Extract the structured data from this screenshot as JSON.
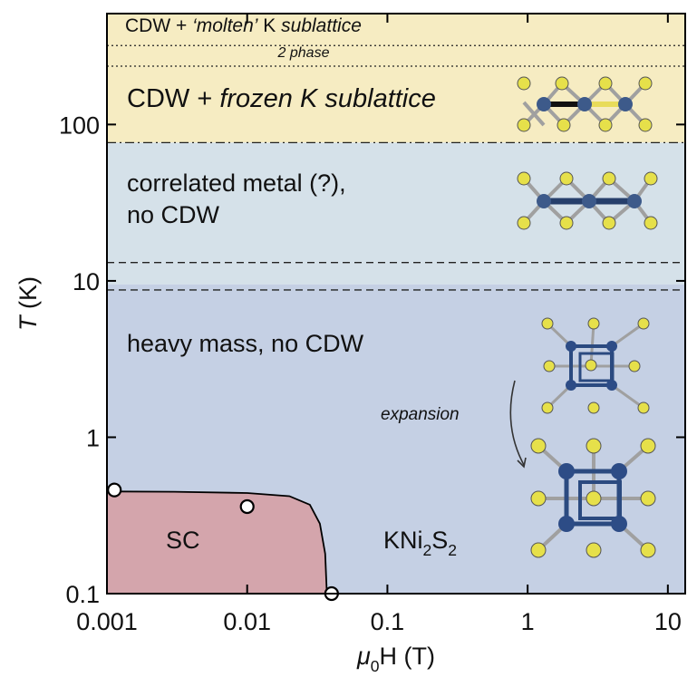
{
  "chart_data": {
    "type": "phase-diagram",
    "x_label": {
      "parts": [
        {
          "text": "μ",
          "italic": true
        },
        {
          "text": "0",
          "sub": true
        },
        {
          "text": "H (T)"
        }
      ]
    },
    "y_label": {
      "parts": [
        {
          "text": "T",
          "italic": true
        },
        {
          "text": " (K)"
        }
      ]
    },
    "xlim": [
      0.001,
      13.3
    ],
    "ylim": [
      0.1,
      512
    ],
    "log_x": true,
    "log_y": true,
    "xticks": [
      0.001,
      0.01,
      0.1,
      1,
      10
    ],
    "yticks": [
      0.1,
      1,
      10,
      100
    ],
    "regions": [
      {
        "lower": 76.6,
        "color": "#f6ecc2"
      },
      {
        "lower": 9.5,
        "color": "#d5e1e9"
      },
      {
        "color": "#c5d0e4"
      }
    ],
    "boundaries": [
      {
        "value": 320,
        "style": "dotted"
      },
      {
        "value": 236,
        "style": "dotted"
      },
      {
        "value": 76.6,
        "style": "dashdot"
      },
      {
        "value": 13.1,
        "style": "dashed"
      },
      {
        "value": 8.75,
        "style": "dashed"
      }
    ],
    "sc_boundary": {
      "color": "#d4a5ac",
      "x": [
        0.001,
        0.003,
        0.01,
        0.02,
        0.028,
        0.033,
        0.036,
        0.037
      ],
      "y": [
        0.45,
        0.448,
        0.44,
        0.42,
        0.37,
        0.28,
        0.18,
        0.1
      ]
    },
    "points": {
      "x": [
        0.00113,
        0.01,
        0.04
      ],
      "y": [
        0.46,
        0.36,
        0.1
      ]
    },
    "annotations": [
      {
        "parts": [
          {
            "text": "CDW + "
          },
          {
            "text": "‘molten’",
            "italic": true
          },
          {
            "text": " K "
          },
          {
            "text": "sublattice",
            "italic": true
          }
        ]
      },
      {
        "parts": [
          {
            "text": "2 phase",
            "italic": true
          }
        ]
      },
      {
        "parts": [
          {
            "text": "CDW + "
          },
          {
            "text": "frozen K sublattice",
            "italic": true
          }
        ]
      },
      {
        "parts": [
          {
            "text": "correlated metal (?),"
          }
        ]
      },
      {
        "parts": [
          {
            "text": "no CDW"
          }
        ]
      },
      {
        "parts": [
          {
            "text": "heavy mass, no CDW"
          }
        ]
      },
      {
        "parts": [
          {
            "text": "SC"
          }
        ]
      },
      {
        "parts": [
          {
            "text": "KNi"
          },
          {
            "text": "2",
            "sub": true
          },
          {
            "text": "S"
          },
          {
            "text": "2",
            "sub": true
          }
        ]
      },
      {
        "parts": [
          {
            "text": "expansion",
            "italic": true
          }
        ]
      }
    ]
  }
}
